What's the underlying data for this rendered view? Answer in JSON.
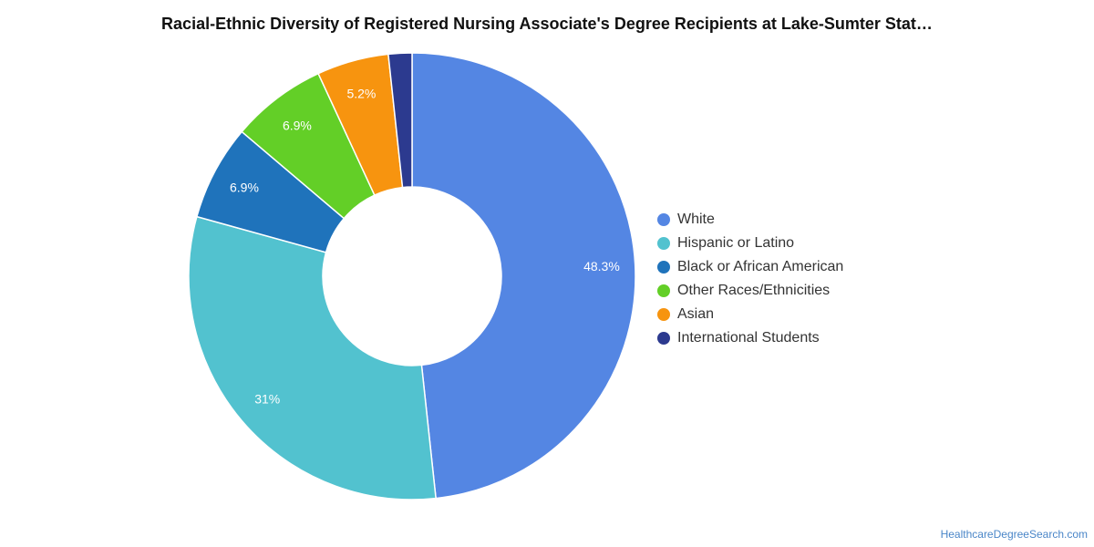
{
  "chart_data": {
    "type": "pie",
    "title": "Racial-Ethnic Diversity of Registered Nursing Associate's Degree Recipients at Lake-Sumter Stat…",
    "slices": [
      {
        "label": "White",
        "value": 48.3,
        "display": "48.3%",
        "color": "#5486e3"
      },
      {
        "label": "Hispanic or Latino",
        "value": 31.0,
        "display": "31%",
        "color": "#52c2cf"
      },
      {
        "label": "Black or African American",
        "value": 6.9,
        "display": "6.9%",
        "color": "#1f73bb"
      },
      {
        "label": "Other Races/Ethnicities",
        "value": 6.9,
        "display": "6.9%",
        "color": "#63cf27"
      },
      {
        "label": "Asian",
        "value": 5.2,
        "display": "5.2%",
        "color": "#f7940f"
      },
      {
        "label": "International Students",
        "value": 1.7,
        "display": "",
        "color": "#2c3a8f"
      }
    ],
    "legend_position": "right"
  },
  "source": "HealthcareDegreeSearch.com"
}
